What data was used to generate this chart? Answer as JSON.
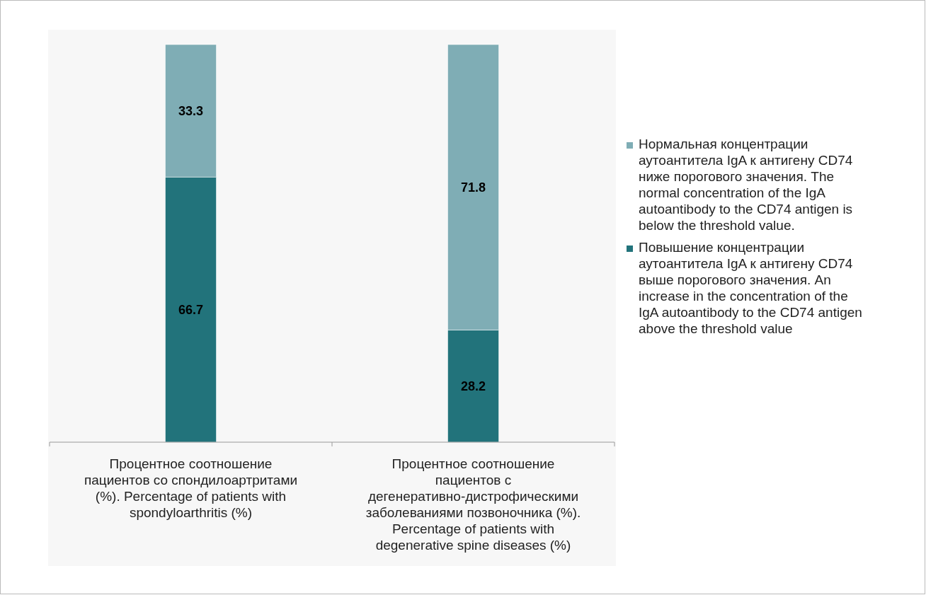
{
  "chart_data": {
    "type": "bar",
    "stacked": true,
    "categories": [
      "Процентное соотношение пациентов со спондилоартритами (%). Percentage of  patients with spondyloarthritis (%)",
      "Процентное соотношение пациентов с дегенеративно-дистрофическими заболеваниями позвоночника (%). Percentage of patients with degenerative spine diseases (%)"
    ],
    "series": [
      {
        "name": "Повышение концентрации аутоантитела IgA к антигену CD74 выше порогового значения. An increase in the concentration of the IgA autoantibody to the CD74 antigen above the threshold value",
        "color": "#22737b",
        "values": [
          66.7,
          28.2
        ]
      },
      {
        "name": "Нормальная концентрации аутоантитела IgA к антигену CD74 ниже порогового значения. The normal concentration of the IgA autoantibody to the CD74 antigen is below the threshold value.",
        "color": "#7fadb5",
        "values": [
          33.3,
          71.8
        ]
      }
    ],
    "ylim": [
      0,
      100
    ],
    "tick_labels": "x",
    "data_labels": true,
    "legend": "right"
  }
}
